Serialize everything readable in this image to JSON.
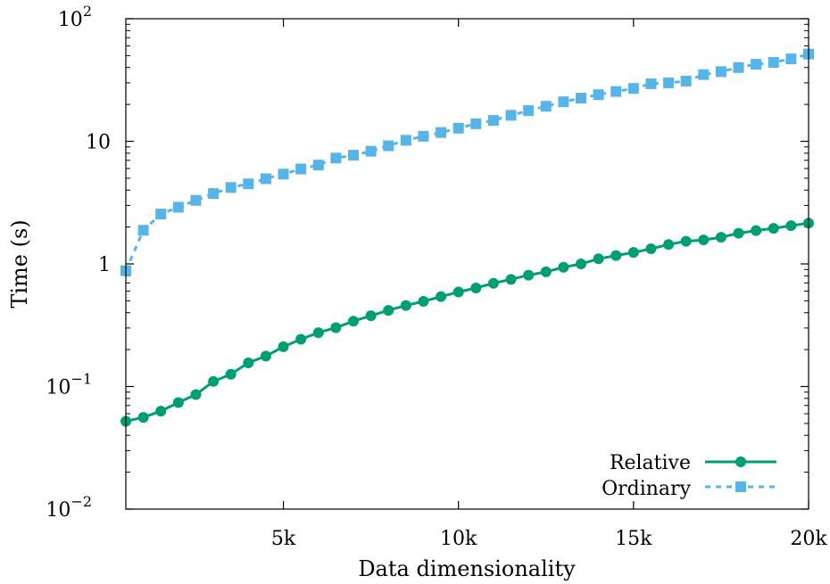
{
  "chart_data": {
    "type": "line",
    "xlabel": "Data dimensionality",
    "ylabel": "Time (s)",
    "xlim": [
      500,
      20000
    ],
    "ylim": [
      0.01,
      100
    ],
    "yscale": "log",
    "grid": false,
    "legend_position": "bottom-right",
    "x_ticks": [
      {
        "value": 5000,
        "label": "5k"
      },
      {
        "value": 10000,
        "label": "10k"
      },
      {
        "value": 15000,
        "label": "15k"
      },
      {
        "value": 20000,
        "label": "20k"
      }
    ],
    "y_ticks": [
      {
        "value": 0.01,
        "base": "10",
        "exp": "−2"
      },
      {
        "value": 0.1,
        "base": "10",
        "exp": "−1"
      },
      {
        "value": 1,
        "base": "1",
        "exp": ""
      },
      {
        "value": 10,
        "base": "10",
        "exp": ""
      },
      {
        "value": 100,
        "base": "10",
        "exp": "2"
      }
    ],
    "x": [
      500,
      1000,
      1500,
      2000,
      2500,
      3000,
      3500,
      4000,
      4500,
      5000,
      5500,
      6000,
      6500,
      7000,
      7500,
      8000,
      8500,
      9000,
      9500,
      10000,
      10500,
      11000,
      11500,
      12000,
      12500,
      13000,
      13500,
      14000,
      14500,
      15000,
      15500,
      16000,
      16500,
      17000,
      17500,
      18000,
      18500,
      19000,
      19500,
      20000
    ],
    "series": [
      {
        "name": "Relative",
        "color": "#009e73",
        "marker": "circle",
        "line": "solid",
        "values": [
          0.052,
          0.056,
          0.063,
          0.074,
          0.086,
          0.11,
          0.126,
          0.156,
          0.177,
          0.211,
          0.243,
          0.275,
          0.302,
          0.341,
          0.378,
          0.418,
          0.458,
          0.495,
          0.541,
          0.59,
          0.636,
          0.695,
          0.748,
          0.81,
          0.862,
          0.94,
          1.0,
          1.1,
          1.17,
          1.24,
          1.33,
          1.44,
          1.53,
          1.57,
          1.65,
          1.78,
          1.87,
          1.95,
          2.05,
          2.15
        ]
      },
      {
        "name": "Ordinary",
        "color": "#56b4e9",
        "marker": "square",
        "line": "dashed",
        "values": [
          0.88,
          1.88,
          2.55,
          2.9,
          3.3,
          3.75,
          4.2,
          4.5,
          4.95,
          5.4,
          5.95,
          6.4,
          7.3,
          7.7,
          8.3,
          9.2,
          10.2,
          11.0,
          11.8,
          12.8,
          13.9,
          14.8,
          16.3,
          17.8,
          19.3,
          21.0,
          22.5,
          24.0,
          25.5,
          27.0,
          29.5,
          30.0,
          31.0,
          35.0,
          37.0,
          40.0,
          42.5,
          44.0,
          47.0,
          51.5
        ]
      }
    ]
  }
}
